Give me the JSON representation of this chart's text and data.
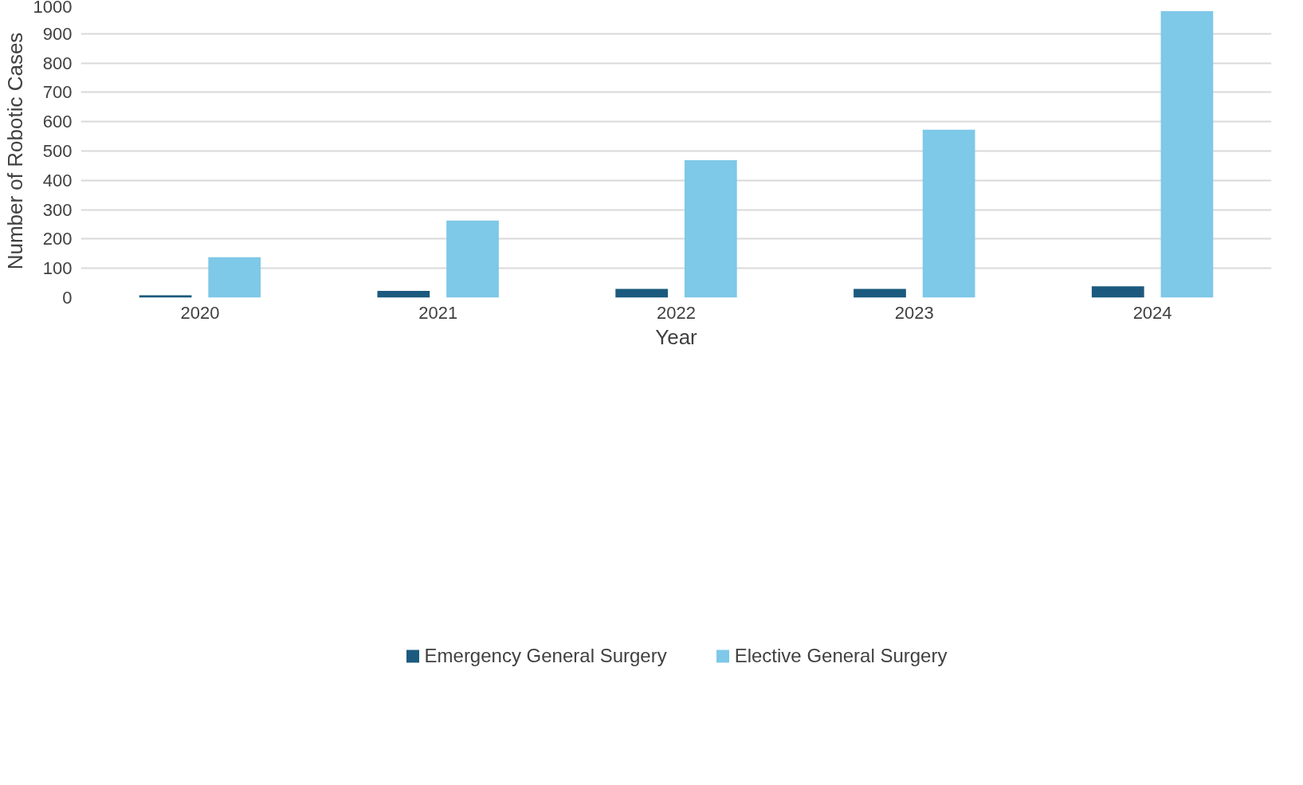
{
  "chart_data": {
    "type": "bar",
    "xlabel": "Year",
    "ylabel": "Number of Robotic Cases",
    "categories": [
      "2020",
      "2021",
      "2022",
      "2023",
      "2024"
    ],
    "series": [
      {
        "name": "Emergency General Surgery",
        "color": "#1b5a7e",
        "values": [
          8,
          23,
          30,
          30,
          39
        ]
      },
      {
        "name": "Elective General Surgery",
        "color": "#7ec8e8",
        "values": [
          138,
          263,
          469,
          573,
          977
        ]
      }
    ],
    "ylim": [
      0,
      1000
    ],
    "yticks": [
      0,
      100,
      200,
      300,
      400,
      500,
      600,
      700,
      800,
      900,
      1000
    ],
    "grid": "y",
    "legend": "bottom"
  }
}
